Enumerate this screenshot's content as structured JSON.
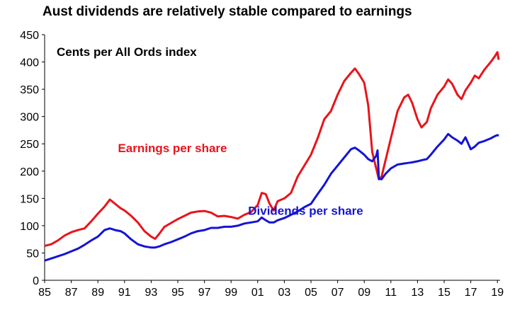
{
  "chart_data": {
    "type": "line",
    "title": "Aust dividends are relatively stable compared to earnings",
    "inner_label": "Cents per All Ords index",
    "xlabel": "",
    "ylabel": "",
    "xlim": [
      1985,
      2019.2
    ],
    "ylim": [
      0,
      450
    ],
    "x_tick_labels": [
      "85",
      "87",
      "89",
      "91",
      "93",
      "95",
      "97",
      "99",
      "01",
      "03",
      "05",
      "07",
      "09",
      "11",
      "13",
      "15",
      "17",
      "19"
    ],
    "x_tick_values": [
      1985,
      1987,
      1989,
      1991,
      1993,
      1995,
      1997,
      1999,
      2001,
      2003,
      2005,
      2007,
      2009,
      2011,
      2013,
      2015,
      2017,
      2019
    ],
    "y_ticks": [
      0,
      50,
      100,
      150,
      200,
      250,
      300,
      350,
      400,
      450
    ],
    "grid": false,
    "series": [
      {
        "name": "Earnings per share",
        "color": "#e8141b",
        "points": [
          [
            1985.0,
            63
          ],
          [
            1985.5,
            66
          ],
          [
            1986.0,
            73
          ],
          [
            1986.5,
            82
          ],
          [
            1987.0,
            88
          ],
          [
            1987.5,
            92
          ],
          [
            1988.0,
            95
          ],
          [
            1988.5,
            108
          ],
          [
            1989.0,
            122
          ],
          [
            1989.5,
            135
          ],
          [
            1989.9,
            148
          ],
          [
            1990.3,
            140
          ],
          [
            1990.7,
            132
          ],
          [
            1991.0,
            128
          ],
          [
            1991.5,
            118
          ],
          [
            1992.0,
            106
          ],
          [
            1992.5,
            90
          ],
          [
            1993.0,
            80
          ],
          [
            1993.3,
            76
          ],
          [
            1993.6,
            85
          ],
          [
            1994.0,
            98
          ],
          [
            1994.5,
            105
          ],
          [
            1995.0,
            112
          ],
          [
            1995.5,
            118
          ],
          [
            1996.0,
            124
          ],
          [
            1996.5,
            126
          ],
          [
            1997.0,
            127
          ],
          [
            1997.5,
            124
          ],
          [
            1998.0,
            117
          ],
          [
            1998.5,
            118
          ],
          [
            1999.0,
            116
          ],
          [
            1999.5,
            113
          ],
          [
            2000.0,
            120
          ],
          [
            2000.5,
            125
          ],
          [
            2001.0,
            138
          ],
          [
            2001.3,
            160
          ],
          [
            2001.6,
            158
          ],
          [
            2001.9,
            140
          ],
          [
            2002.2,
            128
          ],
          [
            2002.5,
            145
          ],
          [
            2003.0,
            150
          ],
          [
            2003.5,
            160
          ],
          [
            2004.0,
            190
          ],
          [
            2004.5,
            210
          ],
          [
            2005.0,
            230
          ],
          [
            2005.5,
            260
          ],
          [
            2006.0,
            295
          ],
          [
            2006.5,
            310
          ],
          [
            2007.0,
            340
          ],
          [
            2007.5,
            365
          ],
          [
            2008.0,
            380
          ],
          [
            2008.3,
            388
          ],
          [
            2008.6,
            378
          ],
          [
            2009.0,
            362
          ],
          [
            2009.3,
            320
          ],
          [
            2009.6,
            235
          ],
          [
            2009.9,
            205
          ],
          [
            2010.1,
            185
          ],
          [
            2010.3,
            190
          ],
          [
            2010.6,
            220
          ],
          [
            2011.0,
            260
          ],
          [
            2011.5,
            310
          ],
          [
            2012.0,
            335
          ],
          [
            2012.3,
            340
          ],
          [
            2012.6,
            325
          ],
          [
            2013.0,
            295
          ],
          [
            2013.3,
            280
          ],
          [
            2013.7,
            290
          ],
          [
            2014.0,
            315
          ],
          [
            2014.5,
            340
          ],
          [
            2015.0,
            355
          ],
          [
            2015.3,
            368
          ],
          [
            2015.6,
            360
          ],
          [
            2016.0,
            340
          ],
          [
            2016.3,
            332
          ],
          [
            2016.6,
            348
          ],
          [
            2017.0,
            362
          ],
          [
            2017.3,
            375
          ],
          [
            2017.6,
            370
          ],
          [
            2018.0,
            385
          ],
          [
            2018.5,
            400
          ],
          [
            2018.8,
            410
          ],
          [
            2019.0,
            418
          ],
          [
            2019.1,
            404
          ]
        ]
      },
      {
        "name": "Dividends per share",
        "color": "#1414d4",
        "points": [
          [
            1985.0,
            36
          ],
          [
            1985.5,
            40
          ],
          [
            1986.0,
            44
          ],
          [
            1986.5,
            48
          ],
          [
            1987.0,
            53
          ],
          [
            1987.5,
            58
          ],
          [
            1988.0,
            65
          ],
          [
            1988.5,
            73
          ],
          [
            1989.0,
            80
          ],
          [
            1989.5,
            92
          ],
          [
            1989.9,
            95
          ],
          [
            1990.3,
            92
          ],
          [
            1990.7,
            90
          ],
          [
            1991.0,
            86
          ],
          [
            1991.5,
            75
          ],
          [
            1992.0,
            66
          ],
          [
            1992.5,
            62
          ],
          [
            1993.0,
            60
          ],
          [
            1993.3,
            60
          ],
          [
            1993.6,
            62
          ],
          [
            1994.0,
            66
          ],
          [
            1994.5,
            70
          ],
          [
            1995.0,
            75
          ],
          [
            1995.5,
            80
          ],
          [
            1996.0,
            86
          ],
          [
            1996.5,
            90
          ],
          [
            1997.0,
            92
          ],
          [
            1997.5,
            96
          ],
          [
            1998.0,
            96
          ],
          [
            1998.5,
            98
          ],
          [
            1999.0,
            98
          ],
          [
            1999.5,
            100
          ],
          [
            2000.0,
            104
          ],
          [
            2000.5,
            106
          ],
          [
            2001.0,
            108
          ],
          [
            2001.3,
            115
          ],
          [
            2001.6,
            110
          ],
          [
            2001.9,
            106
          ],
          [
            2002.2,
            106
          ],
          [
            2002.5,
            110
          ],
          [
            2003.0,
            114
          ],
          [
            2003.5,
            120
          ],
          [
            2004.0,
            126
          ],
          [
            2004.5,
            134
          ],
          [
            2005.0,
            140
          ],
          [
            2005.5,
            158
          ],
          [
            2006.0,
            175
          ],
          [
            2006.5,
            195
          ],
          [
            2007.0,
            210
          ],
          [
            2007.5,
            225
          ],
          [
            2008.0,
            240
          ],
          [
            2008.3,
            243
          ],
          [
            2008.6,
            238
          ],
          [
            2009.0,
            230
          ],
          [
            2009.3,
            222
          ],
          [
            2009.6,
            218
          ],
          [
            2009.9,
            228
          ],
          [
            2010.0,
            238
          ],
          [
            2010.1,
            186
          ],
          [
            2010.3,
            185
          ],
          [
            2010.6,
            195
          ],
          [
            2011.0,
            205
          ],
          [
            2011.5,
            212
          ],
          [
            2012.0,
            214
          ],
          [
            2012.3,
            215
          ],
          [
            2012.6,
            216
          ],
          [
            2013.0,
            218
          ],
          [
            2013.3,
            220
          ],
          [
            2013.7,
            222
          ],
          [
            2014.0,
            230
          ],
          [
            2014.5,
            245
          ],
          [
            2015.0,
            258
          ],
          [
            2015.3,
            268
          ],
          [
            2015.6,
            262
          ],
          [
            2016.0,
            256
          ],
          [
            2016.3,
            250
          ],
          [
            2016.6,
            262
          ],
          [
            2017.0,
            240
          ],
          [
            2017.3,
            245
          ],
          [
            2017.6,
            252
          ],
          [
            2018.0,
            255
          ],
          [
            2018.5,
            260
          ],
          [
            2018.8,
            264
          ],
          [
            2019.0,
            266
          ],
          [
            2019.1,
            265
          ]
        ]
      }
    ],
    "annotations": [
      {
        "text": "Earnings per share",
        "color": "#e8141b",
        "x": 1994.6,
        "y": 235
      },
      {
        "text": "Dividends per share",
        "color": "#1414d4",
        "x": 2004.6,
        "y": 120
      }
    ]
  }
}
